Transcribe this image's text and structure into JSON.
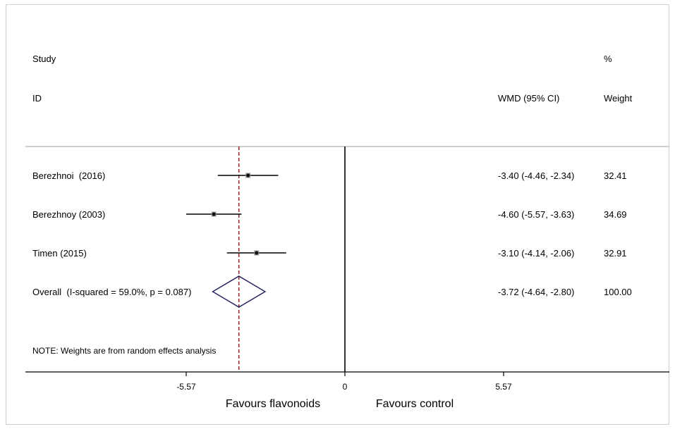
{
  "chart_data": {
    "type": "forest",
    "header": {
      "study_line1": "Study",
      "study_line2": "ID",
      "effect_label": "WMD (95% CI)",
      "weight_line1": "%",
      "weight_line2": "Weight"
    },
    "studies": [
      {
        "label": "Berezhnoi  (2016)",
        "estimate": -3.4,
        "lower": -4.46,
        "upper": -2.34,
        "ci_text": "-3.40 (-4.46, -2.34)",
        "weight_text": "32.41",
        "weight": 32.41
      },
      {
        "label": "Berezhnoy (2003)",
        "estimate": -4.6,
        "lower": -5.57,
        "upper": -3.63,
        "ci_text": "-4.60 (-5.57, -3.63)",
        "weight_text": "34.69",
        "weight": 34.69
      },
      {
        "label": "Timen (2015)",
        "estimate": -3.1,
        "lower": -4.14,
        "upper": -2.06,
        "ci_text": "-3.10 (-4.14, -2.06)",
        "weight_text": "32.91",
        "weight": 32.91
      }
    ],
    "overall": {
      "label": "Overall  (I-squared = 59.0%, p = 0.087)",
      "estimate": -3.72,
      "lower": -4.64,
      "upper": -2.8,
      "ci_text": "-3.72 (-4.64, -2.80)",
      "weight_text": "100.00"
    },
    "note": "NOTE: Weights are from random effects analysis",
    "x_ticks": [
      {
        "value": -5.57,
        "label": "-5.57"
      },
      {
        "value": 0,
        "label": "0"
      },
      {
        "value": 5.57,
        "label": "5.57"
      }
    ],
    "xlim": [
      -5.57,
      5.57
    ],
    "favours_left": "Favours flavonoids",
    "favours_right": "Favours control",
    "null_value": 0,
    "colors": {
      "line": "#000000",
      "diamond": "#1f1f5e",
      "overall_line": "#8b1a1a",
      "marker": "#555555",
      "separator": "#bdbdbd"
    }
  }
}
